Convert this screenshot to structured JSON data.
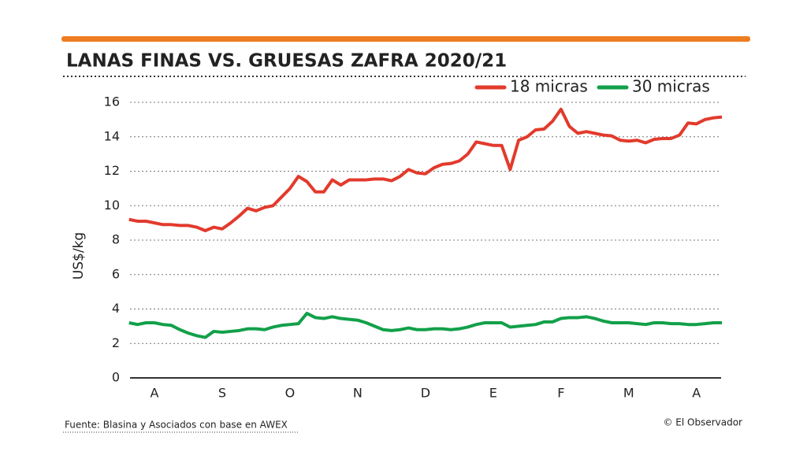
{
  "chart_data": {
    "type": "line",
    "title": "LANAS FINAS VS. GRUESAS ZAFRA 2020/21",
    "ylabel": "US$/kg",
    "source": "Fuente: Blasina y Asociados con base en AWEX",
    "credit": "© El Observador",
    "categories": [
      null,
      null,
      null,
      "A",
      null,
      null,
      null,
      null,
      null,
      null,
      null,
      "S",
      null,
      null,
      null,
      null,
      null,
      null,
      null,
      "O",
      null,
      null,
      null,
      null,
      null,
      null,
      null,
      "N",
      null,
      null,
      null,
      null,
      null,
      null,
      null,
      "D",
      null,
      null,
      null,
      null,
      null,
      null,
      null,
      "E",
      null,
      null,
      null,
      null,
      null,
      null,
      null,
      "F",
      null,
      null,
      null,
      null,
      null,
      null,
      null,
      "M",
      null,
      null,
      null,
      null,
      null,
      null,
      null,
      "A",
      null,
      null,
      null
    ],
    "series": [
      {
        "name": "18 micras",
        "color": "#e23a2c",
        "values": [
          9.2,
          9.1,
          9.1,
          9.0,
          8.9,
          8.9,
          8.85,
          8.85,
          8.75,
          8.55,
          8.75,
          8.65,
          9.0,
          9.4,
          9.85,
          9.7,
          9.9,
          10.0,
          10.5,
          11.0,
          11.7,
          11.4,
          10.8,
          10.8,
          11.5,
          11.2,
          11.5,
          11.5,
          11.5,
          11.55,
          11.55,
          11.45,
          11.7,
          12.1,
          11.9,
          11.85,
          12.2,
          12.4,
          12.45,
          12.6,
          13.0,
          13.7,
          13.6,
          13.5,
          13.5,
          12.1,
          13.8,
          14.0,
          14.4,
          14.45,
          14.9,
          15.6,
          14.6,
          14.2,
          14.3,
          14.2,
          14.1,
          14.05,
          13.8,
          13.75,
          13.8,
          13.65,
          13.85,
          13.9,
          13.9,
          14.1,
          14.8,
          14.75,
          15.0,
          15.1,
          15.15
        ]
      },
      {
        "name": "30 micras",
        "color": "#12a04a",
        "values": [
          3.2,
          3.1,
          3.2,
          3.2,
          3.1,
          3.05,
          2.8,
          2.6,
          2.45,
          2.35,
          2.7,
          2.65,
          2.7,
          2.75,
          2.85,
          2.85,
          2.8,
          2.95,
          3.05,
          3.1,
          3.15,
          3.75,
          3.5,
          3.45,
          3.55,
          3.45,
          3.4,
          3.35,
          3.2,
          3.0,
          2.8,
          2.75,
          2.8,
          2.9,
          2.8,
          2.8,
          2.85,
          2.85,
          2.8,
          2.85,
          2.95,
          3.1,
          3.2,
          3.2,
          3.2,
          2.95,
          3.0,
          3.05,
          3.1,
          3.25,
          3.25,
          3.45,
          3.5,
          3.5,
          3.55,
          3.45,
          3.3,
          3.2,
          3.2,
          3.2,
          3.15,
          3.1,
          3.2,
          3.2,
          3.15,
          3.15,
          3.1,
          3.1,
          3.15,
          3.2,
          3.2
        ]
      }
    ],
    "ylim": [
      0,
      16
    ],
    "yticks": [
      0,
      2,
      4,
      6,
      8,
      10,
      12,
      14,
      16
    ],
    "grid": true,
    "legend": "top-right"
  }
}
